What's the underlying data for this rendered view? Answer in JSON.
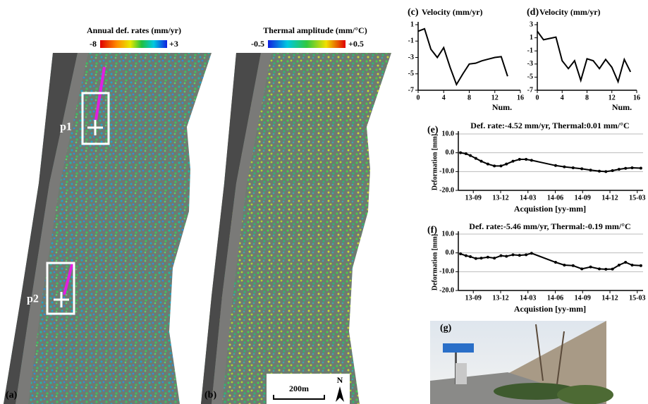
{
  "panels": {
    "a": {
      "label": "(a)",
      "colorbar_title": "Annual def. rates (mm/yr)",
      "colorbar_min": "-8",
      "colorbar_max": "+3",
      "point_1": "p1",
      "point_2": "p2"
    },
    "b": {
      "label": "(b)",
      "colorbar_title": "Thermal amplitude (mm/°C)",
      "colorbar_min": "-0.5",
      "colorbar_max": "+0.5",
      "scale": "200m",
      "north": "N"
    },
    "g": {
      "label": "(g)"
    }
  },
  "chart_data": [
    {
      "type": "line",
      "label": "(c)",
      "title": "Velocity (mm/yr)",
      "x_label": "Num.",
      "x": [
        0,
        1,
        2,
        3,
        4,
        5,
        6,
        7,
        8,
        9,
        10,
        11,
        12,
        13,
        14
      ],
      "values": [
        0.2,
        0.5,
        -2,
        -3,
        -1.8,
        -4.2,
        -6.3,
        -5,
        -3.8,
        -3.7,
        -3.4,
        -3.2,
        -3,
        -2.9,
        -5.3
      ],
      "color": "#000",
      "xlim": [
        0,
        16
      ],
      "xticks": [
        0,
        4,
        8,
        12,
        16
      ],
      "ylim": [
        -7,
        1
      ],
      "yticks": [
        1,
        -1,
        -3,
        -5,
        -7
      ],
      "grid": false
    },
    {
      "type": "line",
      "label": "(d)",
      "title": "Velocity (mm/yr)",
      "x_label": "Num.",
      "x": [
        0,
        1,
        2,
        3,
        4,
        5,
        6,
        7,
        8,
        9,
        10,
        11,
        12,
        13,
        14,
        15
      ],
      "values": [
        2,
        0.7,
        0.9,
        1.1,
        -2.5,
        -3.7,
        -2.5,
        -5.5,
        -2.2,
        -2.5,
        -3.7,
        -2.3,
        -3.5,
        -5.7,
        -2.3,
        -4.2
      ],
      "color": "#000",
      "xlim": [
        0,
        16
      ],
      "xticks": [
        0,
        4,
        8,
        12,
        16
      ],
      "ylim": [
        -7,
        3
      ],
      "yticks": [
        3,
        1,
        -1,
        -3,
        -5,
        -7
      ],
      "grid": false
    },
    {
      "type": "line",
      "label": "(e)",
      "title": "Def. rate:-4.52 mm/yr, Thermal:0.01 mm/°C",
      "x_label": "Acquistion [yy-mm]",
      "y_label": "Deformation [mm]",
      "x": [
        2013.55,
        2013.6,
        2013.64,
        2013.69,
        2013.74,
        2013.8,
        2013.86,
        2013.92,
        2013.97,
        2014.03,
        2014.09,
        2014.15,
        2014.2,
        2014.42,
        2014.5,
        2014.58,
        2014.66,
        2014.74,
        2014.82,
        2014.88,
        2014.94,
        2015.0,
        2015.06,
        2015.12,
        2015.2
      ],
      "values": [
        0,
        -0.5,
        -1.5,
        -3,
        -4.5,
        -6,
        -7,
        -7,
        -6,
        -4.5,
        -3.5,
        -3.5,
        -4,
        -6.8,
        -7.5,
        -8,
        -8.5,
        -9.2,
        -9.8,
        -10,
        -9.5,
        -8.8,
        -8.3,
        -8,
        -8.2
      ],
      "color": "#000",
      "xlim": [
        2013.53,
        2015.22
      ],
      "xticks": [
        {
          "value": 2013.667,
          "label": "13-09"
        },
        {
          "value": 2013.917,
          "label": "13-12"
        },
        {
          "value": 2014.167,
          "label": "14-03"
        },
        {
          "value": 2014.417,
          "label": "14-06"
        },
        {
          "value": 2014.667,
          "label": "14-09"
        },
        {
          "value": 2014.917,
          "label": "14-12"
        },
        {
          "value": 2015.167,
          "label": "15-03"
        }
      ],
      "ylim": [
        -20,
        10
      ],
      "yticks": [
        {
          "value": 10,
          "label": "10.0"
        },
        {
          "value": 0,
          "label": "0.0"
        },
        {
          "value": -10,
          "label": "-10.0"
        },
        {
          "value": -20,
          "label": "-20.0"
        }
      ],
      "grid": true
    },
    {
      "type": "line",
      "label": "(f)",
      "title": "Def. rate:-5.46 mm/yr, Thermal:-0.19 mm/°C",
      "x_label": "Acquistion [yy-mm]",
      "y_label": "Deformation [mm]",
      "x": [
        2013.55,
        2013.6,
        2013.64,
        2013.69,
        2013.74,
        2013.8,
        2013.86,
        2013.92,
        2013.97,
        2014.03,
        2014.09,
        2014.15,
        2014.2,
        2014.42,
        2014.5,
        2014.58,
        2014.66,
        2014.74,
        2014.82,
        2014.88,
        2014.94,
        2015.0,
        2015.06,
        2015.12,
        2015.2
      ],
      "values": [
        -0.5,
        -1.5,
        -2,
        -3,
        -2.8,
        -2.3,
        -2.8,
        -1.5,
        -1.8,
        -1,
        -1.3,
        -1,
        -0.2,
        -5,
        -6.5,
        -6.8,
        -8.5,
        -7.5,
        -8.5,
        -8.7,
        -8.6,
        -6.5,
        -5,
        -6.5,
        -6.8
      ],
      "color": "#000",
      "xlim": [
        2013.53,
        2015.22
      ],
      "xticks": [
        {
          "value": 2013.667,
          "label": "13-09"
        },
        {
          "value": 2013.917,
          "label": "13-12"
        },
        {
          "value": 2014.167,
          "label": "14-03"
        },
        {
          "value": 2014.417,
          "label": "14-06"
        },
        {
          "value": 2014.667,
          "label": "14-09"
        },
        {
          "value": 2014.917,
          "label": "14-12"
        },
        {
          "value": 2015.167,
          "label": "15-03"
        }
      ],
      "ylim": [
        -20,
        10
      ],
      "yticks": [
        {
          "value": 10,
          "label": "10.0"
        },
        {
          "value": 0,
          "label": "0.0"
        },
        {
          "value": -10,
          "label": "-10.0"
        },
        {
          "value": -20,
          "label": "-20.0"
        }
      ],
      "grid": true
    }
  ]
}
